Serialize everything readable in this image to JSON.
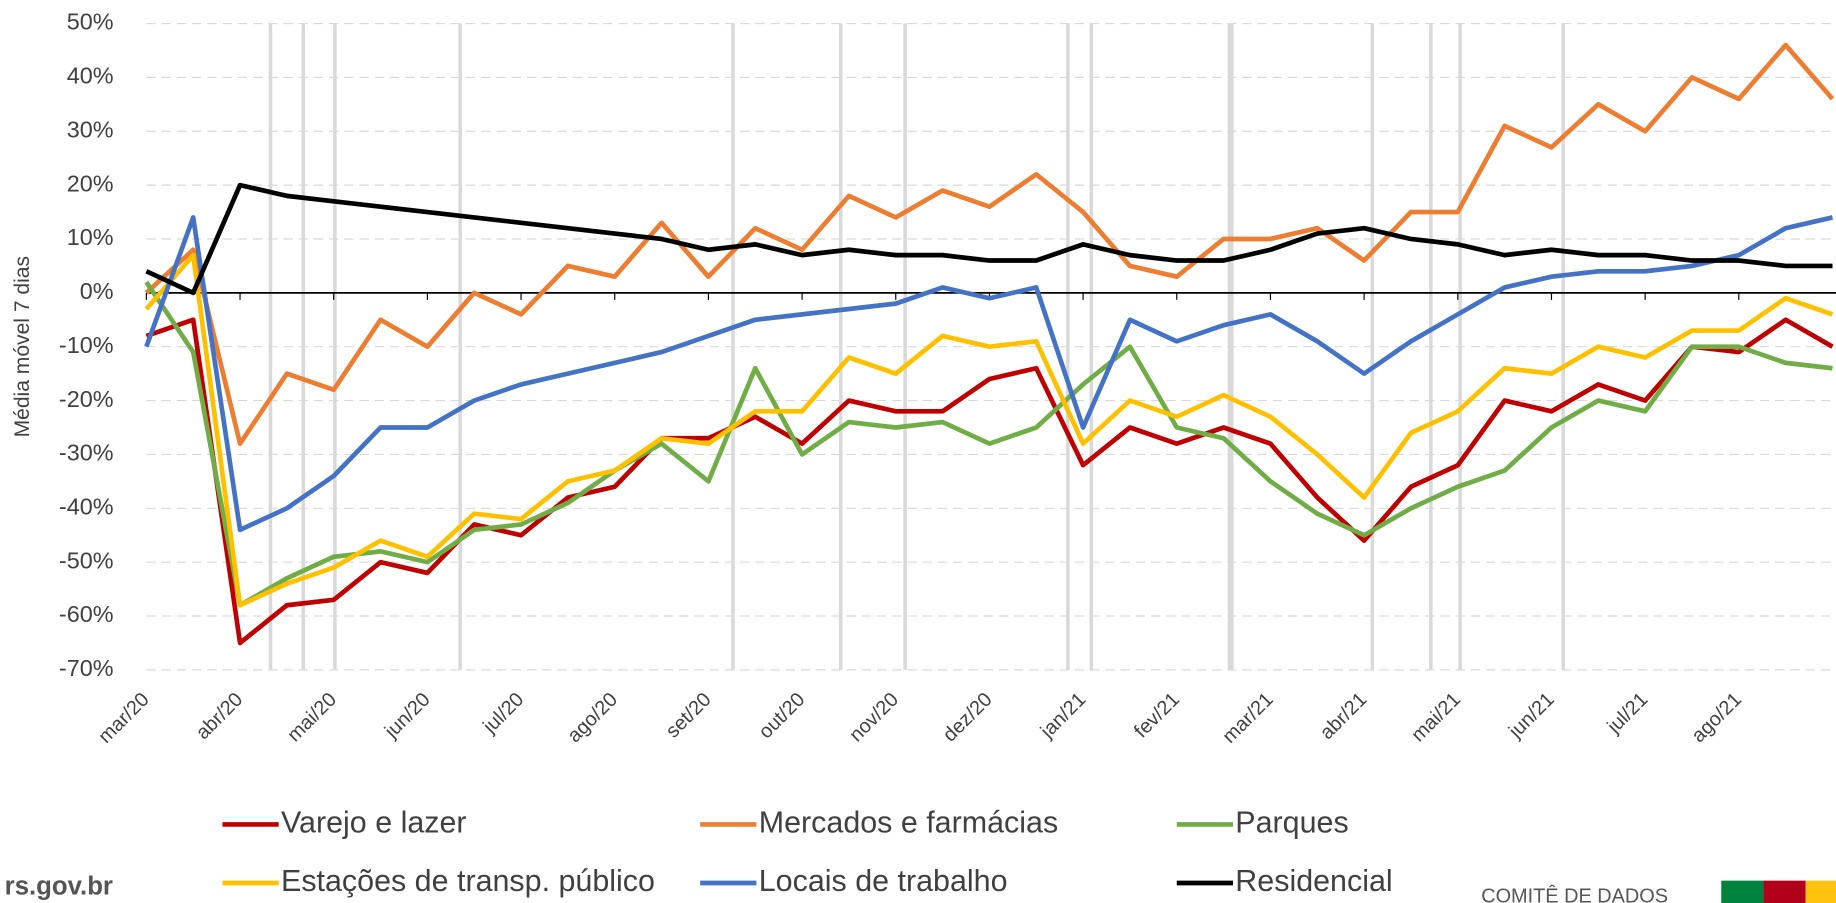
{
  "chart_data": {
    "type": "line",
    "y_label": "Média móvel 7 dias",
    "categories": [
      "mar/20",
      null,
      "abr/20",
      null,
      "mai/20",
      null,
      "jun/20",
      null,
      "jul/20",
      null,
      "ago/20",
      null,
      "set/20",
      null,
      "out/20",
      null,
      "nov/20",
      null,
      "dez/20",
      null,
      "jan/21",
      null,
      "fev/21",
      null,
      "mar/21",
      null,
      "abr/21",
      null,
      "mai/21",
      null,
      "jun/21",
      null,
      "jul/21",
      null,
      "ago/21",
      null,
      null
    ],
    "series": [
      {
        "name": "Varejo e lazer",
        "color": "#c00000",
        "values": [
          -8,
          -5,
          -65,
          -58,
          -57,
          -50,
          -52,
          -43,
          -45,
          -38,
          -36,
          -27,
          -27,
          -23,
          -28,
          -20,
          -22,
          -22,
          -16,
          -14,
          -32,
          -25,
          -28,
          -25,
          -28,
          -38,
          -46,
          -36,
          -32,
          -20,
          -22,
          -17,
          -20,
          -10,
          -11,
          -5,
          -10
        ]
      },
      {
        "name": "Mercados e farmácias",
        "color": "#ed7d31",
        "values": [
          0,
          8,
          -28,
          -15,
          -18,
          -5,
          -10,
          0,
          -4,
          5,
          3,
          13,
          3,
          12,
          8,
          18,
          14,
          19,
          16,
          22,
          15,
          5,
          3,
          10,
          10,
          12,
          6,
          15,
          15,
          31,
          27,
          35,
          30,
          40,
          36,
          46,
          36
        ]
      },
      {
        "name": "Parques",
        "color": "#70ad47",
        "values": [
          2,
          -11,
          -58,
          -53,
          -49,
          -48,
          -50,
          -44,
          -43,
          -39,
          -33,
          -28,
          -35,
          -14,
          -30,
          -24,
          -25,
          -24,
          -28,
          -25,
          -17,
          -10,
          -25,
          -27,
          -35,
          -41,
          -45,
          -40,
          -36,
          -33,
          -25,
          -20,
          -22,
          -10,
          -10,
          -13,
          -14
        ]
      },
      {
        "name": "Estações de transp. público",
        "color": "#ffc000",
        "values": [
          -3,
          7,
          -58,
          -54,
          -51,
          -46,
          -49,
          -41,
          -42,
          -35,
          -33,
          -27,
          -28,
          -22,
          -22,
          -12,
          -15,
          -8,
          -10,
          -9,
          -28,
          -20,
          -23,
          -19,
          -23,
          -30,
          -38,
          -26,
          -22,
          -14,
          -15,
          -10,
          -12,
          -7,
          -7,
          -1,
          -4
        ]
      },
      {
        "name": "Locais de trabalho",
        "color": "#4472c4",
        "values": [
          -10,
          14,
          -44,
          -40,
          -34,
          -25,
          -25,
          -20,
          -17,
          -15,
          -13,
          -11,
          -8,
          -5,
          -4,
          -3,
          -2,
          1,
          -1,
          1,
          -25,
          -5,
          -9,
          -6,
          -4,
          -9,
          -15,
          -9,
          -4,
          1,
          3,
          4,
          4,
          5,
          7,
          12,
          14
        ]
      },
      {
        "name": "Residencial",
        "color": "#000000",
        "values": [
          4,
          0,
          20,
          18,
          17,
          16,
          15,
          14,
          13,
          12,
          11,
          10,
          8,
          9,
          7,
          8,
          7,
          7,
          6,
          6,
          9,
          7,
          6,
          6,
          8,
          11,
          12,
          10,
          9,
          7,
          8,
          7,
          7,
          6,
          6,
          5,
          5
        ]
      }
    ],
    "ylim": [
      -70,
      50
    ],
    "yticks": [
      {
        "value": 50,
        "label": "50%"
      },
      {
        "value": 40,
        "label": "40%"
      },
      {
        "value": 30,
        "label": "30%"
      },
      {
        "value": 20,
        "label": "20%"
      },
      {
        "value": 10,
        "label": "10%"
      },
      {
        "value": 0,
        "label": "0%"
      },
      {
        "value": -10,
        "label": "-10%"
      },
      {
        "value": -20,
        "label": "-20%"
      },
      {
        "value": -30,
        "label": "-30%"
      },
      {
        "value": -40,
        "label": "-40%"
      },
      {
        "value": -50,
        "label": "-50%"
      },
      {
        "value": -60,
        "label": "-60%"
      },
      {
        "value": -70,
        "label": "-70%"
      }
    ],
    "grid": true
  },
  "footer": {
    "site": "rs.gov.br",
    "org": "COMITÊ DE DADOS"
  }
}
